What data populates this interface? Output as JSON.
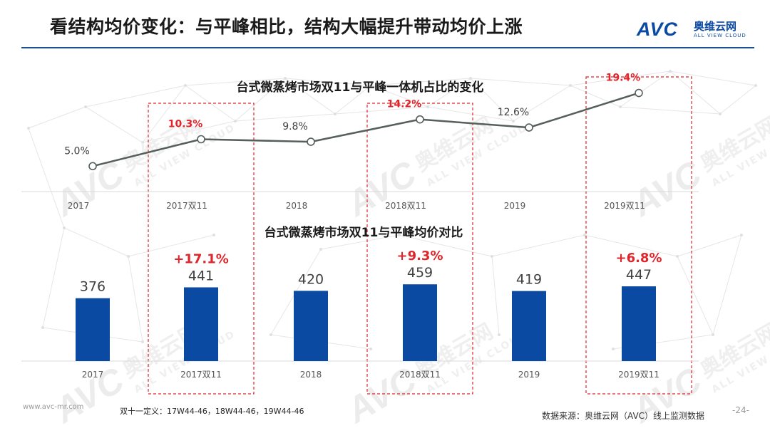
{
  "header": {
    "title": "看结构均价变化：与平峰相比，结构大幅提升带动均价上涨"
  },
  "logo": {
    "mark": "AVC",
    "cn": "奥维云网",
    "en": "ALL VIEW CLOUD"
  },
  "colors": {
    "accent_blue": "#0b4aa2",
    "highlight_red": "#e0252b",
    "line_gray": "#555f5c",
    "title_rule": "#1f4e8c"
  },
  "watermark": {
    "brand": "AVC",
    "cn": "奥维云网",
    "en": "ALL VIEW CLOUD"
  },
  "chart_data": [
    {
      "type": "line",
      "title": "台式微蒸烤市场双11与平峰一体机占比的变化",
      "categories": [
        "2017",
        "2017双11",
        "2018",
        "2018双11",
        "2019",
        "2019双11"
      ],
      "values": [
        5.0,
        10.3,
        9.8,
        14.2,
        12.6,
        19.4
      ],
      "labels": [
        "5.0%",
        "10.3%",
        "9.8%",
        "14.2%",
        "12.6%",
        "19.4%"
      ],
      "highlighted": [
        false,
        true,
        false,
        true,
        false,
        true
      ],
      "ylim": [
        0,
        22
      ],
      "unit": "%"
    },
    {
      "type": "bar",
      "title": "台式微蒸烤市场双11与平峰均价对比",
      "categories": [
        "2017",
        "2017双11",
        "2018",
        "2018双11",
        "2019",
        "2019双11"
      ],
      "values": [
        376,
        441,
        420,
        459,
        419,
        447
      ],
      "growth": [
        "",
        "+17.1%",
        "",
        "+9.3%",
        "",
        "+6.8%"
      ],
      "ylim": [
        0,
        460
      ]
    }
  ],
  "footer": {
    "watermark_url": "www.avc-mr.com",
    "definition": "双十一定义：17W44-46，18W44-46，19W44-46",
    "source": "数据来源：奥维云网（AVC）线上监测数据",
    "page": "-24-"
  }
}
